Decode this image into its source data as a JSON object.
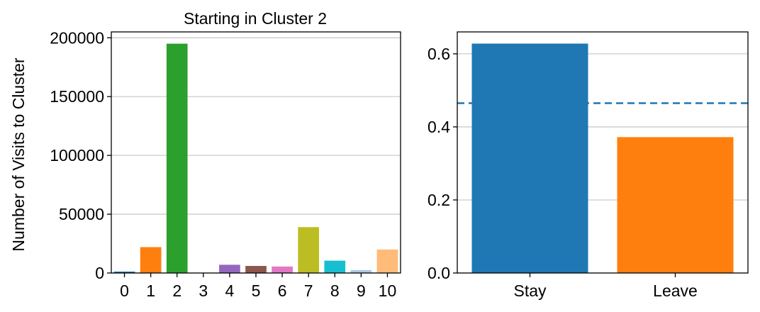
{
  "chart_data": [
    {
      "type": "bar",
      "title": "Starting in Cluster 2",
      "xlabel": "",
      "ylabel": "Number of Visits to Cluster",
      "categories": [
        "0",
        "1",
        "2",
        "3",
        "4",
        "5",
        "6",
        "7",
        "8",
        "9",
        "10"
      ],
      "values": [
        1200,
        22000,
        195000,
        300,
        7000,
        6000,
        5500,
        39000,
        10500,
        2500,
        20000
      ],
      "colors": [
        "#1f77b4",
        "#ff7f0e",
        "#2ca02c",
        "#d62728",
        "#9467bd",
        "#8c564b",
        "#e377c2",
        "#bcbd22",
        "#17becf",
        "#aec7e8",
        "#ffbb78"
      ],
      "ylim": [
        0,
        205000
      ],
      "yticks": [
        0,
        50000,
        100000,
        150000,
        200000
      ],
      "ytick_labels": [
        "0",
        "50000",
        "100000",
        "150000",
        "200000"
      ],
      "grid": "horizontal"
    },
    {
      "type": "bar",
      "title": "",
      "xlabel": "",
      "ylabel": "",
      "categories": [
        "Stay",
        "Leave"
      ],
      "values": [
        0.628,
        0.372
      ],
      "colors": [
        "#1f77b4",
        "#ff7f0e"
      ],
      "ylim": [
        0,
        0.66
      ],
      "yticks": [
        0.0,
        0.2,
        0.4,
        0.6
      ],
      "ytick_labels": [
        "0.0",
        "0.2",
        "0.4",
        "0.6"
      ],
      "reference_line": {
        "value": 0.465,
        "style": "dashed",
        "color": "#1f77b4"
      },
      "grid": "horizontal"
    }
  ]
}
